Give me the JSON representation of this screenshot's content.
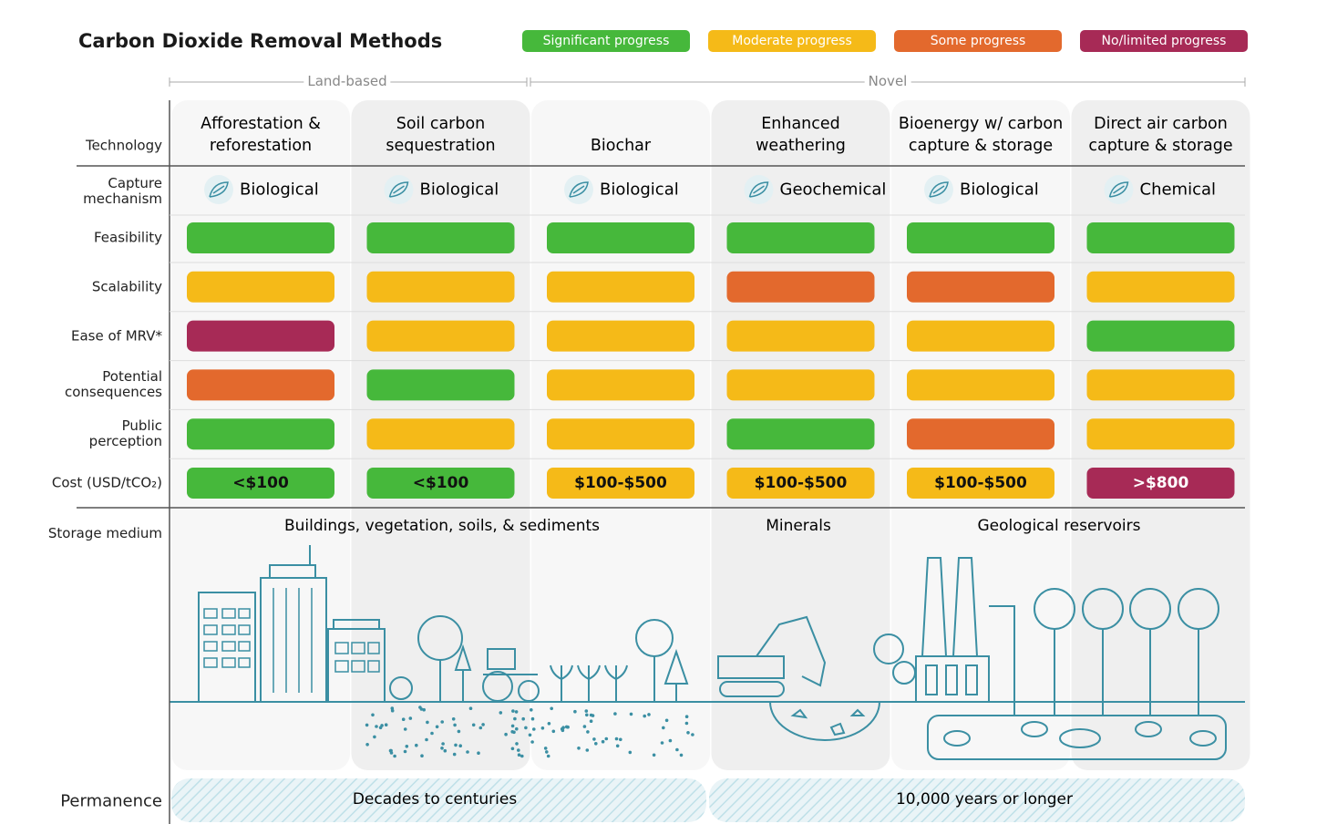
{
  "title": "Carbon Dioxide Removal Methods",
  "legend": [
    {
      "label": "Significant progress",
      "color": "#46b83b"
    },
    {
      "label": "Moderate progress",
      "color": "#f5ba18"
    },
    {
      "label": "Some progress",
      "color": "#e3692d"
    },
    {
      "label": "No/limited progress",
      "color": "#a72a56"
    }
  ],
  "groups": [
    "Land-based",
    "Novel"
  ],
  "header_label": "Technology",
  "mechanism_label": "Capture mechanism",
  "technologies": [
    "Afforestation & reforestation",
    "Soil carbon sequestration",
    "Biochar",
    "Enhanced weathering",
    "Bioenergy w/ carbon capture & storage",
    "Direct air carbon capture & storage"
  ],
  "mechanisms": [
    "Biological",
    "Biological",
    "Biological",
    "Geochemical",
    "Biological",
    "Chemical"
  ],
  "ratings": [
    {
      "label": "Feasibility",
      "colors": [
        "#46b83b",
        "#46b83b",
        "#46b83b",
        "#46b83b",
        "#46b83b",
        "#46b83b"
      ]
    },
    {
      "label": "Scalability",
      "colors": [
        "#f5ba18",
        "#f5ba18",
        "#f5ba18",
        "#e3692d",
        "#e3692d",
        "#f5ba18"
      ]
    },
    {
      "label": "Ease of MRV*",
      "colors": [
        "#a72a56",
        "#f5ba18",
        "#f5ba18",
        "#f5ba18",
        "#f5ba18",
        "#46b83b"
      ]
    },
    {
      "label": "Potential consequences",
      "colors": [
        "#e3692d",
        "#46b83b",
        "#f5ba18",
        "#f5ba18",
        "#f5ba18",
        "#f5ba18"
      ]
    },
    {
      "label": "Public perception",
      "colors": [
        "#46b83b",
        "#f5ba18",
        "#f5ba18",
        "#46b83b",
        "#e3692d",
        "#f5ba18"
      ]
    }
  ],
  "cost": {
    "label": "Cost (USD/tCO₂)",
    "cells": [
      {
        "text": "<$100",
        "color": "#46b83b"
      },
      {
        "text": "<$100",
        "color": "#46b83b"
      },
      {
        "text": "$100-$500",
        "color": "#f5ba18"
      },
      {
        "text": "$100-$500",
        "color": "#f5ba18"
      },
      {
        "text": "$100-$500",
        "color": "#f5ba18"
      },
      {
        "text": ">$800",
        "color": "#a72a56"
      }
    ]
  },
  "storage": {
    "label": "Storage medium",
    "items": [
      "Buildings, vegetation, soils, & sediments",
      "Minerals",
      "Geological reservoirs"
    ]
  },
  "permanence": {
    "label": "Permanence",
    "items": [
      "Decades to centuries",
      "10,000 years or longer"
    ]
  }
}
